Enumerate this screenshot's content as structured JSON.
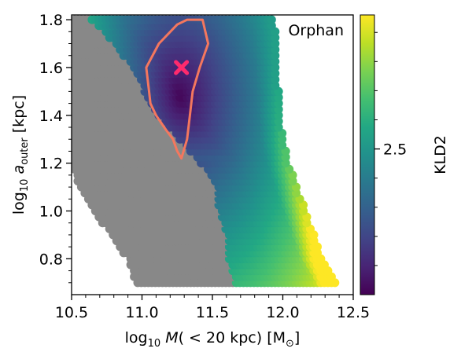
{
  "chart_data": {
    "type": "scatter",
    "title": "",
    "annotation": "Orphan",
    "xlabel": {
      "prefix": "log",
      "sub": "10",
      "main": "M",
      "rest": "( < 20 kpc) [M",
      "unit_sub": "⊙",
      "close": "]"
    },
    "ylabel": {
      "prefix": "log",
      "sub": "10",
      "main": "a",
      "main_sub": "outer",
      "rest": " [kpc]"
    },
    "xlim": [
      10.5,
      12.5
    ],
    "ylim": [
      0.65,
      1.82
    ],
    "xticks": [
      10.5,
      11.0,
      11.5,
      12.0,
      12.5
    ],
    "xtick_labels": [
      "10.5",
      "11.0",
      "11.5",
      "12.0",
      "12.5"
    ],
    "yticks": [
      0.8,
      1.0,
      1.2,
      1.4,
      1.6,
      1.8
    ],
    "ytick_labels": [
      "0.8",
      "1.0",
      "1.2",
      "1.4",
      "1.6",
      "1.8"
    ],
    "colorbar": {
      "label": "KLD2",
      "ticks": [
        2.5
      ],
      "tick_labels": [
        "2.5"
      ],
      "range": [
        0.0,
        4.8
      ],
      "colormap": "viridis"
    },
    "excluded_color": "#888888",
    "grid_step": {
      "x": 0.025,
      "y": 0.025
    },
    "boundaries": {
      "y": [
        0.7,
        0.8,
        0.9,
        1.0,
        1.1,
        1.2,
        1.3,
        1.4,
        1.5,
        1.6,
        1.7,
        1.8
      ],
      "gray_left": [
        10.95,
        10.9,
        10.78,
        10.66,
        10.56,
        10.5,
        10.5,
        10.5,
        10.5,
        10.5,
        10.5,
        10.5
      ],
      "gray_right": [
        11.67,
        11.62,
        11.6,
        11.55,
        11.53,
        11.42,
        11.26,
        11.12,
        11.02,
        10.94,
        10.8,
        10.64
      ],
      "data_right": [
        12.38,
        12.28,
        12.22,
        12.16,
        12.1,
        12.04,
        12.0,
        11.98,
        11.97,
        11.96,
        11.95,
        11.94
      ]
    },
    "best_fit": {
      "x": 11.28,
      "y": 1.6,
      "marker": "x",
      "color": "#ff2a6d"
    },
    "kld_minimum": {
      "x": 11.28,
      "y": 1.48
    },
    "contour": {
      "color": "#f4775e",
      "x": [
        11.25,
        11.32,
        11.43,
        11.47,
        11.41,
        11.36,
        11.34,
        11.32,
        11.28,
        11.25,
        11.22,
        11.17,
        11.1,
        11.06,
        11.05,
        11.03,
        11.12,
        11.25
      ],
      "y": [
        1.78,
        1.8,
        1.8,
        1.7,
        1.6,
        1.5,
        1.4,
        1.3,
        1.22,
        1.25,
        1.3,
        1.34,
        1.4,
        1.45,
        1.5,
        1.6,
        1.7,
        1.78
      ]
    }
  }
}
